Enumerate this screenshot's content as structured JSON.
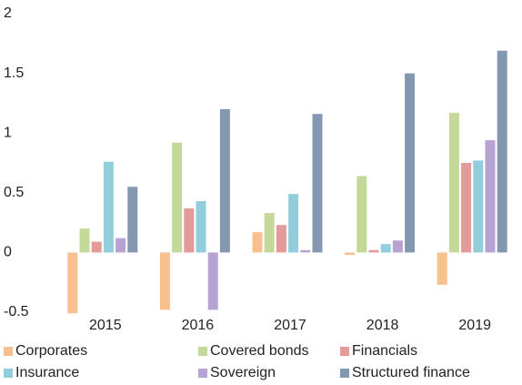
{
  "chart_data": {
    "type": "bar",
    "categories": [
      "2015",
      "2016",
      "2017",
      "2018",
      "2019"
    ],
    "series": [
      {
        "name": "Corporates",
        "color": "#f9c08f",
        "values": [
          -0.51,
          -0.48,
          0.17,
          -0.02,
          -0.27
        ]
      },
      {
        "name": "Covered bonds",
        "color": "#c4d89a",
        "values": [
          0.2,
          0.92,
          0.33,
          0.64,
          1.17
        ]
      },
      {
        "name": "Financials",
        "color": "#e39a98",
        "values": [
          0.09,
          0.37,
          0.23,
          0.02,
          0.75
        ]
      },
      {
        "name": "Insurance",
        "color": "#92cddc",
        "values": [
          0.76,
          0.43,
          0.49,
          0.07,
          0.77
        ]
      },
      {
        "name": "Sovereign",
        "color": "#b7a3d1",
        "values": [
          0.12,
          -0.48,
          0.02,
          0.1,
          0.94
        ]
      },
      {
        "name": "Structured finance",
        "color": "#8497b0",
        "values": [
          0.55,
          1.2,
          1.16,
          1.5,
          1.69
        ]
      }
    ],
    "ylim": [
      -0.5,
      2
    ],
    "yticks": [
      -0.5,
      0,
      0.5,
      1,
      1.5,
      2
    ],
    "grid": false,
    "legend": "bottom"
  }
}
